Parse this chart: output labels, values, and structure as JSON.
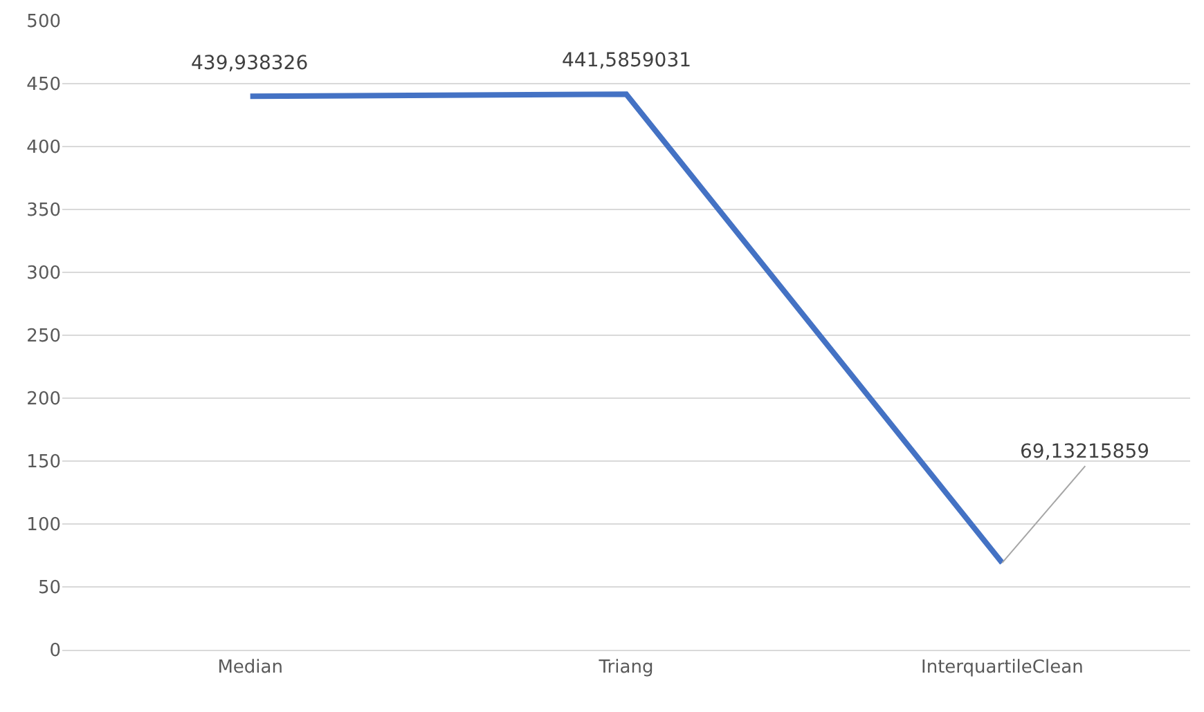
{
  "chart_data": {
    "type": "line",
    "categories": [
      "Median",
      "Triang",
      "InterquartileClean"
    ],
    "values": [
      439.938326,
      441.5859031,
      69.13215859
    ],
    "value_labels": [
      "439,938326",
      "441,5859031",
      "69,13215859"
    ],
    "color": "#4472c4",
    "ylim": [
      0,
      500
    ],
    "yticks": [
      0,
      50,
      100,
      150,
      200,
      250,
      300,
      350,
      400,
      450,
      500
    ],
    "grid": "y",
    "marker": "none",
    "line_style": "solid",
    "legend": false
  }
}
